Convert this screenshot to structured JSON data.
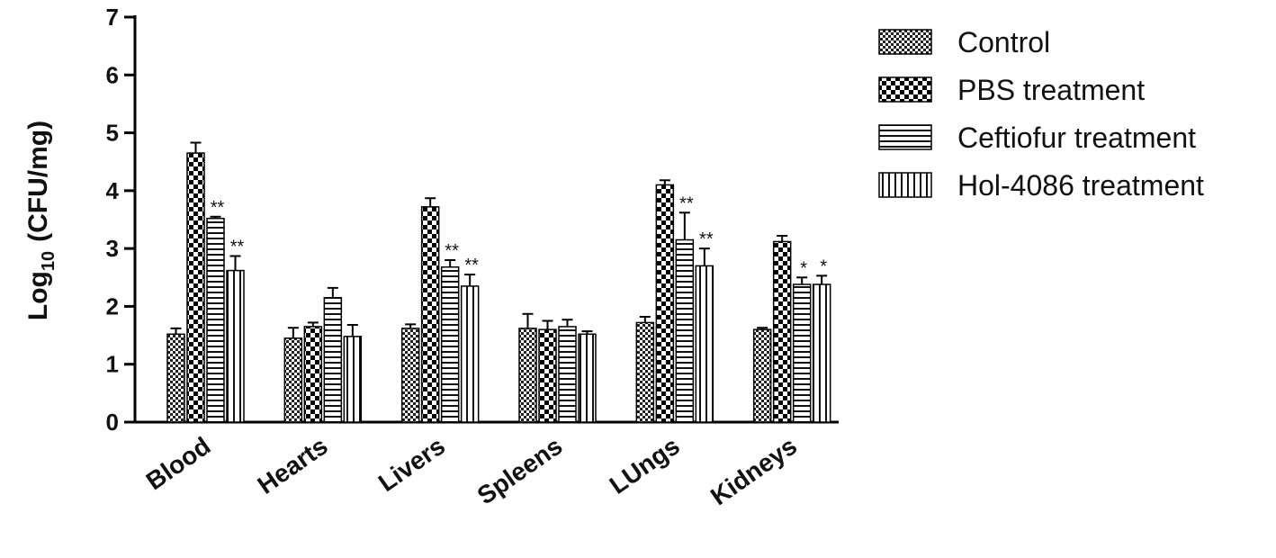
{
  "chart_data": {
    "type": "bar",
    "categories": [
      "Blood",
      "Hearts",
      "Livers",
      "Spleens",
      "LUngs",
      "Kidneys"
    ],
    "ylabel_main": "Log",
    "ylabel_sub": "10",
    "ylabel_unit": "(CFU/mg)",
    "ylim": [
      0,
      7
    ],
    "yticks": [
      "0",
      "1",
      "2",
      "3",
      "4",
      "5",
      "6",
      "7"
    ],
    "grid": false,
    "legend_position": "right",
    "series": [
      {
        "name": "Control",
        "pattern": "checker-small",
        "values": [
          1.52,
          1.45,
          1.62,
          1.62,
          1.72,
          1.6
        ],
        "errors": [
          0.1,
          0.18,
          0.07,
          0.25,
          0.1,
          0.03
        ],
        "significance": [
          "",
          "",
          "",
          "",
          "",
          ""
        ]
      },
      {
        "name": "PBS treatment",
        "pattern": "checker-large",
        "values": [
          4.65,
          1.65,
          3.72,
          1.6,
          4.1,
          3.12
        ],
        "errors": [
          0.18,
          0.07,
          0.15,
          0.15,
          0.08,
          0.1
        ],
        "significance": [
          "",
          "",
          "",
          "",
          "",
          ""
        ]
      },
      {
        "name": "Ceftiofur treatment",
        "pattern": "horizontal-lines",
        "values": [
          3.52,
          2.15,
          2.68,
          1.65,
          3.15,
          2.38
        ],
        "errors": [
          0.03,
          0.17,
          0.12,
          0.12,
          0.47,
          0.12
        ],
        "significance": [
          "**",
          "",
          "**",
          "",
          "**",
          "*"
        ]
      },
      {
        "name": "Hol-4086 treatment",
        "pattern": "vertical-lines",
        "values": [
          2.62,
          1.48,
          2.35,
          1.52,
          2.7,
          2.38
        ],
        "errors": [
          0.25,
          0.2,
          0.2,
          0.05,
          0.3,
          0.15
        ],
        "significance": [
          "**",
          "",
          "**",
          "",
          "**",
          "*"
        ]
      }
    ]
  }
}
